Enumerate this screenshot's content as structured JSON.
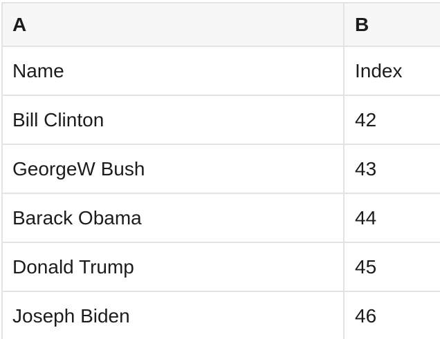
{
  "colors": {
    "cell_background": "#ffffff",
    "header_background": "#f7f7f7",
    "border": "#e3e3e3",
    "text": "#1c1c1c"
  },
  "table": {
    "column_headers": [
      {
        "label": "A"
      },
      {
        "label": "B"
      }
    ],
    "rows": [
      {
        "cells": [
          "Name",
          "Index"
        ]
      },
      {
        "cells": [
          "Bill Clinton",
          "42"
        ]
      },
      {
        "cells": [
          "GeorgeW Bush",
          "43"
        ]
      },
      {
        "cells": [
          "Barack Obama",
          "44"
        ]
      },
      {
        "cells": [
          "Donald Trump",
          "45"
        ]
      },
      {
        "cells": [
          "Joseph Biden",
          "46"
        ]
      }
    ]
  }
}
